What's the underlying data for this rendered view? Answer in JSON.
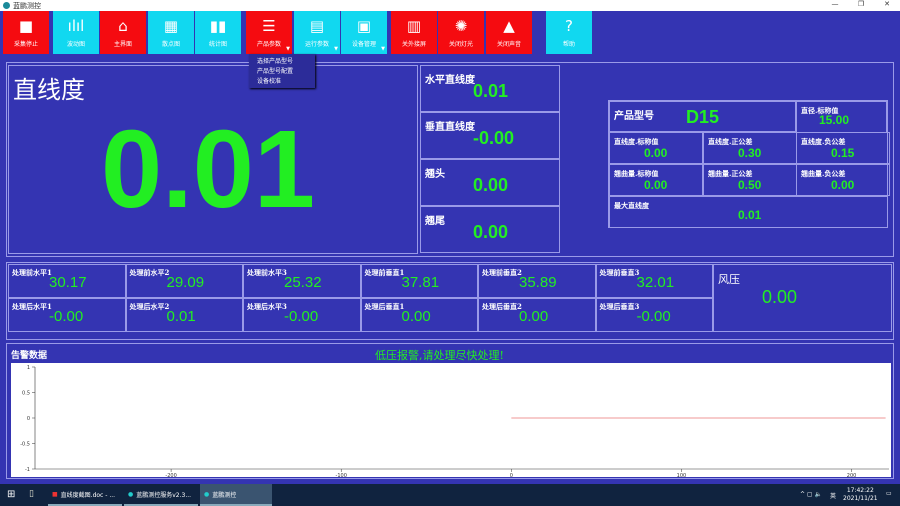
{
  "window": {
    "title": "蓝鹏测控",
    "min": "—",
    "max": "❐",
    "close": "✕"
  },
  "toolbar": [
    {
      "label": "采集停止",
      "icon": "stop-icon",
      "color": "#f50b10"
    },
    {
      "label": "波动图",
      "icon": "waveform-icon",
      "color": "#11d8f0"
    },
    {
      "label": "主界面",
      "icon": "home-icon",
      "color": "#f50b10"
    },
    {
      "label": "散点图",
      "icon": "scatter-grid-icon",
      "color": "#11d8f0"
    },
    {
      "label": "统计图",
      "icon": "bar-chart-icon",
      "color": "#11d8f0"
    },
    {
      "label": "产品参数",
      "icon": "list-icon",
      "color": "#f50b10"
    },
    {
      "label": "运行参数",
      "icon": "calculator-icon",
      "color": "#11d8f0"
    },
    {
      "label": "设备管理",
      "icon": "device-icon",
      "color": "#11d8f0"
    },
    {
      "label": "关外接屏",
      "icon": "screen-icon",
      "color": "#f50b10"
    },
    {
      "label": "关闭灯光",
      "icon": "lightbulb-icon",
      "color": "#f50b10"
    },
    {
      "label": "关闭声音",
      "icon": "alarm-icon",
      "color": "#f50b10"
    },
    {
      "label": "帮助",
      "icon": "help-icon",
      "color": "#11d8f0"
    }
  ],
  "dropdown": [
    "选择产品型号",
    "产品型号配置",
    "设备校准"
  ],
  "main": {
    "title": "直线度",
    "value": "0.01"
  },
  "side": [
    {
      "label": "水平直线度",
      "value": "0.01"
    },
    {
      "label": "垂直直线度",
      "value": "-0.00"
    },
    {
      "label": "翘头",
      "value": "0.00"
    },
    {
      "label": "翘尾",
      "value": "0.00"
    }
  ],
  "product": {
    "model_label": "产品型号",
    "model": "D15",
    "cells": [
      {
        "label": "直径.标称值",
        "value": "15.00"
      },
      {
        "label": "直线度.标称值",
        "value": "0.00"
      },
      {
        "label": "直线度.正公差",
        "value": "0.30"
      },
      {
        "label": "直线度.负公差",
        "value": "0.15"
      },
      {
        "label": "翘曲量.标称值",
        "value": "0.00"
      },
      {
        "label": "翘曲量.正公差",
        "value": "0.50"
      },
      {
        "label": "翘曲量.负公差",
        "value": "0.00"
      }
    ],
    "max_label": "最大直线度",
    "max_value": "0.01"
  },
  "process": {
    "before": [
      {
        "label": "处理前水平1",
        "value": "30.17"
      },
      {
        "label": "处理前水平2",
        "value": "29.09"
      },
      {
        "label": "处理前水平3",
        "value": "25.32"
      },
      {
        "label": "处理前垂直1",
        "value": "37.81"
      },
      {
        "label": "处理前垂直2",
        "value": "35.89"
      },
      {
        "label": "处理前垂直3",
        "value": "32.01"
      }
    ],
    "after": [
      {
        "label": "处理后水平1",
        "value": "-0.00"
      },
      {
        "label": "处理后水平2",
        "value": "0.01"
      },
      {
        "label": "处理后水平3",
        "value": "-0.00"
      },
      {
        "label": "处理后垂直1",
        "value": "0.00"
      },
      {
        "label": "处理后垂直2",
        "value": "0.00"
      },
      {
        "label": "处理后垂直3",
        "value": "-0.00"
      }
    ],
    "wind_label": "风压",
    "wind_value": "0.00"
  },
  "alarm": {
    "title": "告警数据",
    "message": "低压报警,请处理尽快处理!"
  },
  "chart_data": {
    "type": "line",
    "xlim": [
      -280,
      222
    ],
    "ylim": [
      -1,
      1
    ],
    "xticks": [
      -200,
      -100,
      0,
      100,
      200
    ],
    "yticks": [
      1,
      0.5,
      0,
      -0.5,
      -1
    ],
    "series": [
      {
        "x": [
          0,
          220
        ],
        "y": [
          0,
          0
        ],
        "color": "#e03030"
      }
    ]
  },
  "taskbar": {
    "items": [
      "直线度截图.doc - ...",
      "蓝鹏测控服务v2.3...",
      "蓝鹏测控"
    ],
    "ime": "英",
    "time": "17:42:22",
    "date": "2021/11/21"
  }
}
